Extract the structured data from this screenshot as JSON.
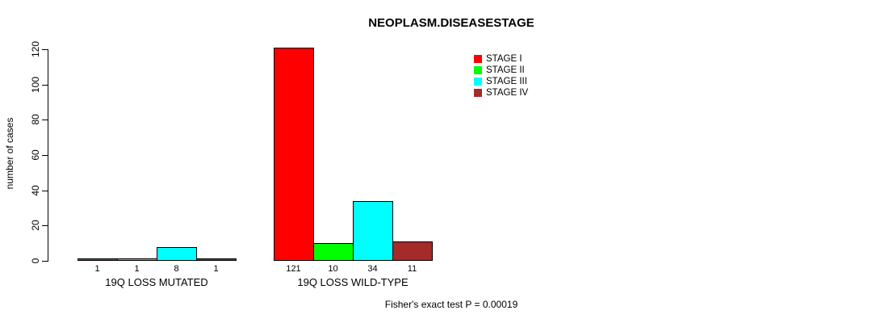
{
  "chart_data": {
    "type": "bar",
    "title": "NEOPLASM.DISEASESTAGE",
    "ylabel": "number of cases",
    "xlabel": "",
    "annotation": "Fisher's exact test P = 0.00019",
    "ylim": [
      0,
      120
    ],
    "yticks": [
      0,
      20,
      40,
      60,
      80,
      100,
      120
    ],
    "grid": false,
    "bar_value_labels": true,
    "categories": [
      "19Q LOSS MUTATED",
      "19Q LOSS WILD-TYPE"
    ],
    "series": [
      {
        "name": "STAGE I",
        "color": "#ff0000",
        "values": [
          1,
          121
        ]
      },
      {
        "name": "STAGE II",
        "color": "#00ff00",
        "values": [
          1,
          10
        ]
      },
      {
        "name": "STAGE III",
        "color": "#00ffff",
        "values": [
          8,
          34
        ]
      },
      {
        "name": "STAGE IV",
        "color": "#a52a2a",
        "values": [
          1,
          11
        ]
      }
    ],
    "legend": {
      "position": "top-right",
      "entries": [
        "STAGE I",
        "STAGE II",
        "STAGE III",
        "STAGE IV"
      ]
    }
  }
}
